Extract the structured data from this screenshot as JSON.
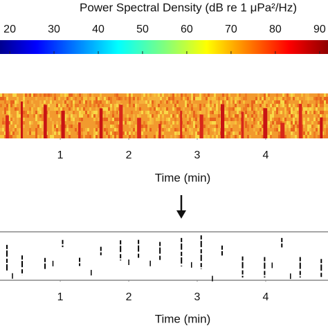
{
  "chart_data": [
    {
      "type": "spectrogram",
      "title": "Power Spectral Density (dB re 1 μPa²/Hz)",
      "colorbar_lim": [
        17.8,
        91.9
      ],
      "colorbar_ticks": [
        20,
        30,
        40,
        50,
        60,
        70,
        80,
        90
      ],
      "xlim": [
        0.12,
        4.91
      ],
      "xticks": [
        1,
        2,
        3,
        4
      ],
      "xlabel": "Time (min)"
    },
    {
      "type": "binary",
      "xlim": [
        0.12,
        4.91
      ],
      "xticks": [
        1,
        2,
        3,
        4
      ],
      "xlabel": "Time (min)"
    }
  ]
}
